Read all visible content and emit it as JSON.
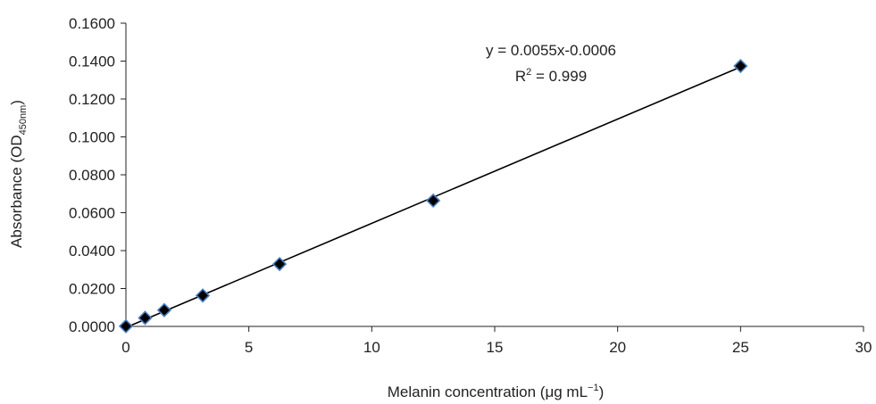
{
  "chart_data": {
    "type": "scatter",
    "title": "",
    "xlabel": {
      "main": "Melanin concentration (μg mL",
      "sup": "−1",
      "tail": ")"
    },
    "ylabel": {
      "main": "Absorbance (OD",
      "sub": "450nm",
      "tail": ")"
    },
    "xlim": [
      0,
      30
    ],
    "ylim": [
      0,
      0.16
    ],
    "xticks": [
      0,
      5,
      10,
      15,
      20,
      25,
      30
    ],
    "xtick_labels": [
      "0",
      "5",
      "10",
      "15",
      "20",
      "25",
      "30"
    ],
    "yticks": [
      0,
      0.02,
      0.04,
      0.06,
      0.08,
      0.1,
      0.12,
      0.14,
      0.16
    ],
    "ytick_labels": [
      "0.0000",
      "0.0200",
      "0.0400",
      "0.0600",
      "0.0800",
      "0.1000",
      "0.1200",
      "0.1400",
      "0.1600"
    ],
    "grid": false,
    "series": [
      {
        "x": [
          0,
          0.78,
          1.56,
          3.125,
          6.25,
          12.5,
          25
        ],
        "y": [
          0.0001,
          0.0045,
          0.0086,
          0.0163,
          0.0329,
          0.0664,
          0.1374
        ],
        "marker": "diamond",
        "marker_fill": "#000000",
        "marker_edge": "#4a7fc1"
      }
    ],
    "trendline": {
      "slope": 0.0055,
      "intercept": -0.0006,
      "x_range": [
        0,
        25
      ],
      "color": "#000000"
    },
    "annotations": {
      "equation": "y = 0.0055x-0.0006",
      "r2_prefix": "R",
      "r2_sup": "2",
      "r2_value": " = 0.999"
    }
  }
}
